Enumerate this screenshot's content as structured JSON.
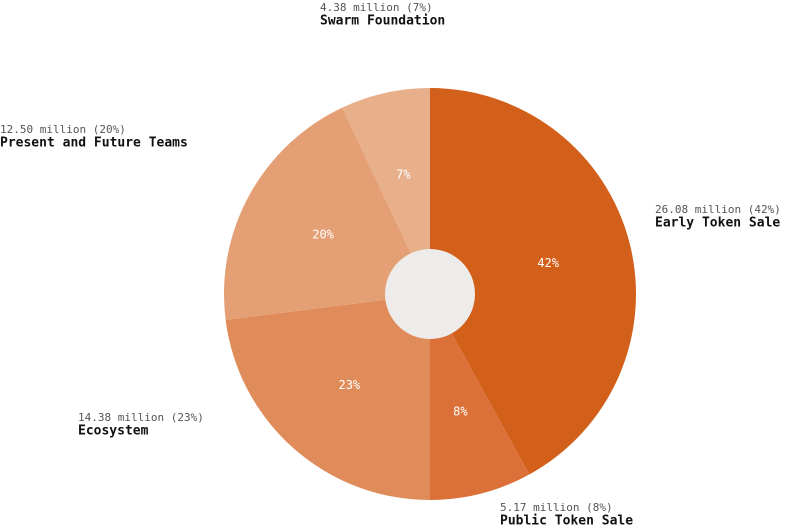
{
  "chart_data": {
    "type": "pie",
    "categories": [
      "Early Token Sale",
      "Public Token Sale",
      "Ecosystem",
      "Present and Future Teams",
      "Swarm Foundation"
    ],
    "values": [
      42,
      8,
      23,
      20,
      7
    ],
    "value_labels": [
      "42%",
      "8%",
      "23%",
      "20%",
      "7%"
    ],
    "detail_labels": [
      "26.08 million (42%)",
      "5.17 million (8%)",
      "14.38 million (23%)",
      "12.50 million (20%)",
      "4.38 million (7%)"
    ],
    "colors": [
      "#d2601a",
      "#db7139",
      "#e08c5a",
      "#e49f74",
      "#e8b08a"
    ]
  }
}
